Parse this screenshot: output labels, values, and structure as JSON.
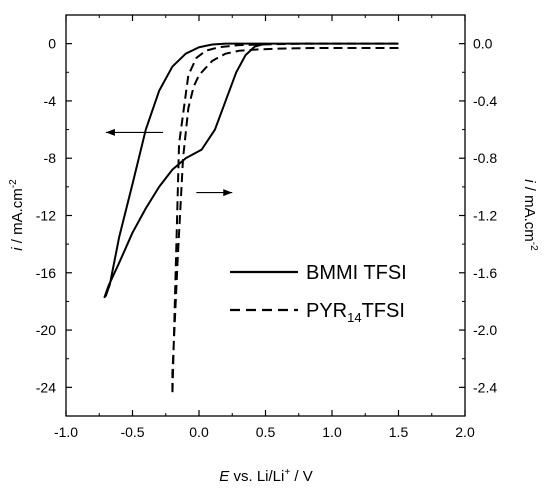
{
  "chart_data": {
    "type": "line",
    "xlabel": {
      "italic": "E",
      "rest": " vs. Li/Li",
      "sup": "+",
      "end": " / V"
    },
    "ylabel_left": {
      "italic": "i",
      "rest": " / mA.cm",
      "sup": "-2"
    },
    "ylabel_right": {
      "italic": "i",
      "rest": " / mA.cm",
      "sup": "-2"
    },
    "xlim": [
      -1.0,
      2.0
    ],
    "ylim_left": [
      -26,
      2
    ],
    "ylim_right": [
      -2.6,
      0.2
    ],
    "x_ticks": [
      -1.0,
      -0.5,
      0.0,
      0.5,
      1.0,
      1.5,
      2.0
    ],
    "x_tick_labels": [
      "-1.0",
      "-0.5",
      "0.0",
      "0.5",
      "1.0",
      "1.5",
      "2.0"
    ],
    "y_left_ticks": [
      0,
      -4,
      -8,
      -12,
      -16,
      -20,
      -24
    ],
    "y_left_tick_labels": [
      "0",
      "-4",
      "-8",
      "-12",
      "-16",
      "-20",
      "-24"
    ],
    "y_right_ticks": [
      0.0,
      -0.4,
      -0.8,
      -1.2,
      -1.6,
      -2.0,
      -2.4
    ],
    "y_right_tick_labels": [
      "0.0",
      "-0.4",
      "-0.8",
      "-1.2",
      "-1.6",
      "-2.0",
      "-2.4"
    ],
    "grid": false,
    "legend_position": "bottom-right",
    "series": [
      {
        "name": "BMMI TFSI",
        "axis": "left",
        "style": "solid",
        "x": [
          1.5,
          1.2,
          0.9,
          0.6,
          0.5,
          0.42,
          0.35,
          0.28,
          0.2,
          0.12,
          0.02,
          -0.1,
          -0.2,
          -0.3,
          -0.4,
          -0.5,
          -0.6,
          -0.68,
          -0.71,
          -0.7,
          -0.67,
          -0.6,
          -0.5,
          -0.4,
          -0.3,
          -0.2,
          -0.1,
          0.0,
          0.1,
          0.2,
          0.3,
          0.4,
          0.5,
          0.6,
          0.9,
          1.2,
          1.5
        ],
        "y": [
          0.0,
          0.0,
          0.0,
          0.0,
          0.0,
          -0.2,
          -0.8,
          -2.0,
          -4.0,
          -6.0,
          -7.4,
          -8.0,
          -8.8,
          -10.0,
          -11.5,
          -13.2,
          -15.3,
          -16.9,
          -17.7,
          -17.6,
          -16.8,
          -13.5,
          -9.8,
          -6.0,
          -3.3,
          -1.6,
          -0.7,
          -0.25,
          -0.06,
          0.0,
          0.0,
          0.0,
          0.0,
          0.0,
          0.0,
          0.0,
          0.0
        ]
      },
      {
        "name": "PYR14TFSI",
        "name_parts": {
          "pre": "PYR",
          "sub": "14",
          "post": "TFSI"
        },
        "axis": "right",
        "style": "dashed",
        "x": [
          1.5,
          1.2,
          0.9,
          0.6,
          0.45,
          0.3,
          0.2,
          0.1,
          0.05,
          0.0,
          -0.04,
          -0.08,
          -0.12,
          -0.16,
          -0.19,
          -0.2,
          -0.2,
          -0.15,
          -0.08,
          -0.02,
          0.05,
          0.15,
          0.3,
          0.5,
          0.8,
          1.1,
          1.5
        ],
        "y": [
          -0.03,
          -0.03,
          -0.03,
          -0.035,
          -0.04,
          -0.05,
          -0.07,
          -0.12,
          -0.17,
          -0.22,
          -0.3,
          -0.45,
          -0.8,
          -1.5,
          -2.1,
          -2.3,
          -2.45,
          -0.7,
          -0.22,
          -0.1,
          -0.05,
          -0.025,
          -0.01,
          -0.005,
          0.0,
          0.0,
          0.0
        ]
      }
    ],
    "annotations": [
      {
        "type": "arrow",
        "direction": "left",
        "from": [
          -0.27,
          -6.2
        ],
        "to": [
          -0.7,
          -6.2
        ],
        "axis": "left",
        "meaning": "points to left axis"
      },
      {
        "type": "arrow",
        "direction": "right",
        "from": [
          -0.02,
          -1.04
        ],
        "to": [
          0.25,
          -1.04
        ],
        "axis": "right",
        "meaning": "points to right axis"
      }
    ]
  }
}
